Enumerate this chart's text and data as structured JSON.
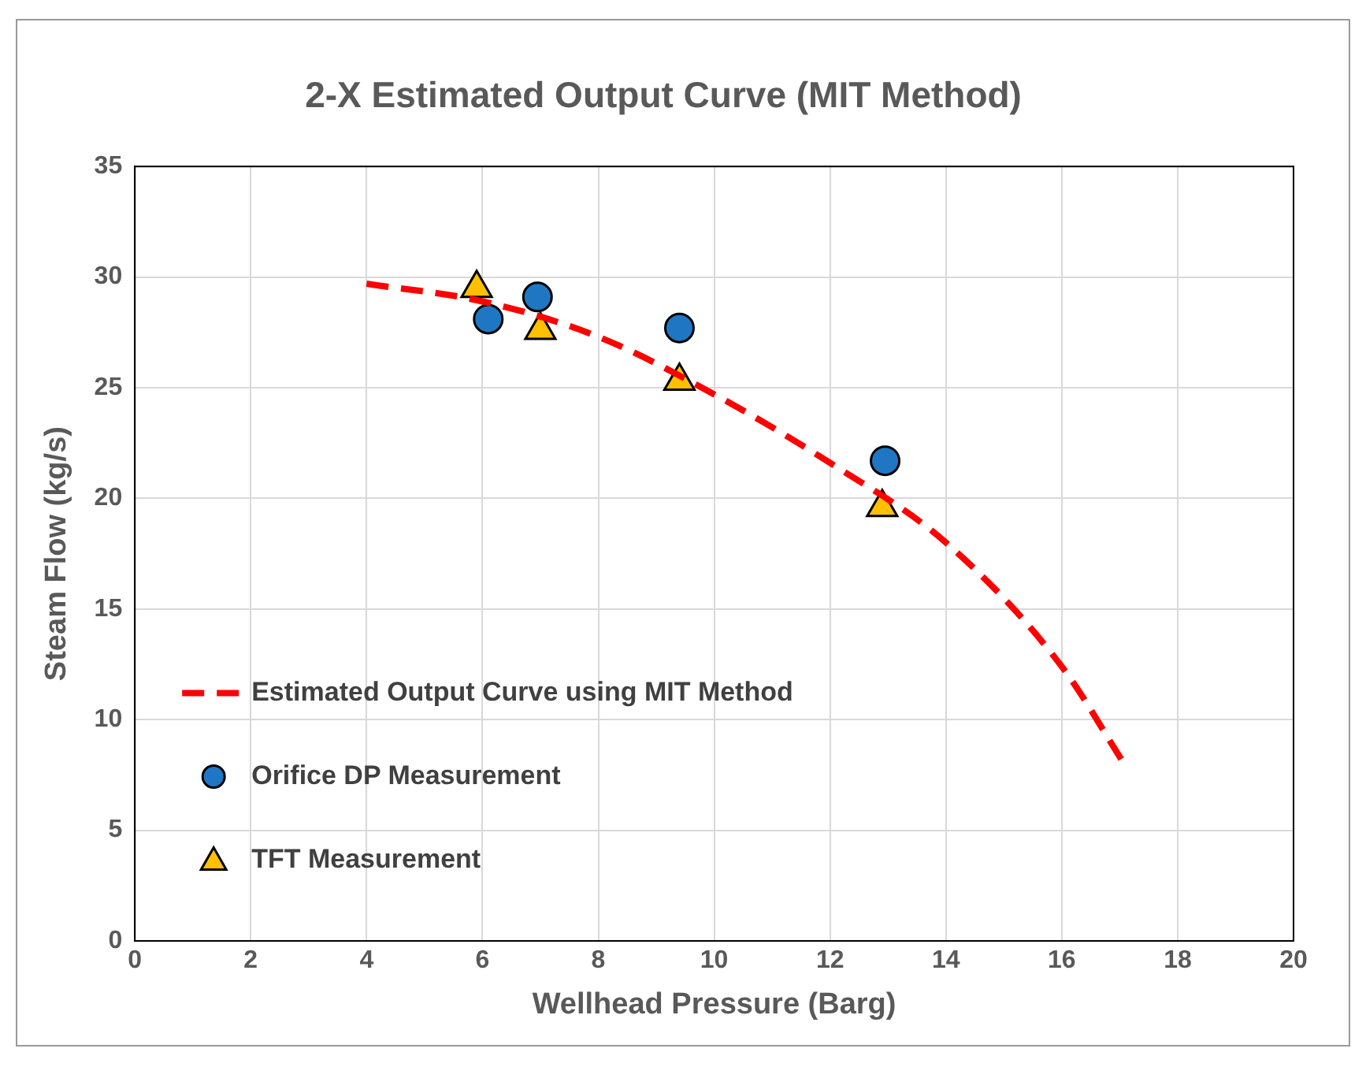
{
  "chart_data": {
    "type": "scatter",
    "title": "2-X Estimated Output Curve (MIT Method)",
    "xlabel": "Wellhead Pressure (Barg)",
    "ylabel": "Steam Flow (kg/s)",
    "xlim": [
      0,
      20
    ],
    "xticks": [
      0,
      2,
      4,
      6,
      8,
      10,
      12,
      14,
      16,
      18,
      20
    ],
    "ylim": [
      0,
      35
    ],
    "yticks": [
      0,
      5,
      10,
      15,
      20,
      25,
      30,
      35
    ],
    "grid": true,
    "legend": "left",
    "series": [
      {
        "name": "Estimated Output Curve using MIT Method",
        "type": "line",
        "line_style": "dashed",
        "marker": "none",
        "color": "#ff0000",
        "x": [
          4,
          6,
          8,
          10,
          12,
          14,
          16,
          17.1
        ],
        "values": [
          29.7,
          28.9,
          27.3,
          24.7,
          21.6,
          18,
          12.4,
          7.9
        ]
      },
      {
        "name": "Orifice DP Measurement",
        "type": "scatter",
        "marker": "circle",
        "color": "#1f77c4",
        "x": [
          6.1,
          6.95,
          9.4,
          12.95
        ],
        "values": [
          28.1,
          29.1,
          27.7,
          21.7
        ]
      },
      {
        "name": "TFT Measurement",
        "type": "scatter",
        "marker": "triangle",
        "color": "#ffc000",
        "x": [
          5.9,
          7.0,
          9.4,
          12.9
        ],
        "values": [
          29.5,
          27.6,
          25.3,
          19.6
        ]
      }
    ]
  }
}
